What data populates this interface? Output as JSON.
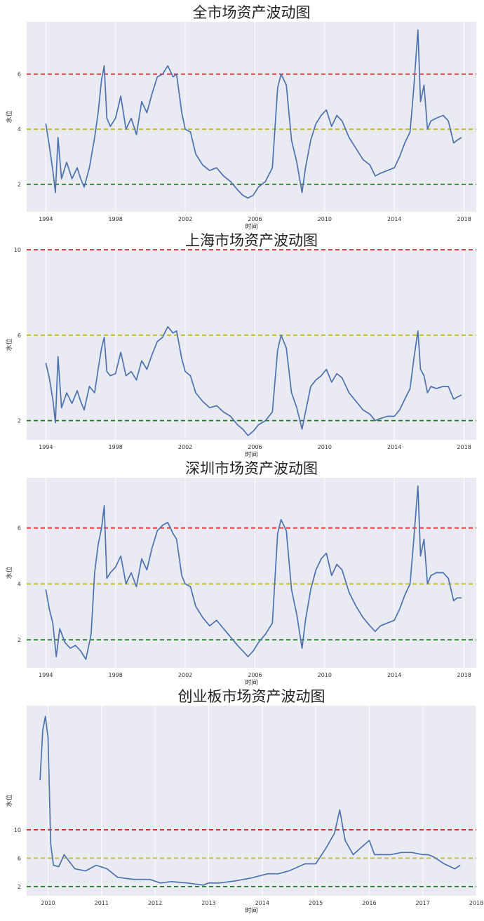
{
  "chart_data": [
    {
      "type": "line",
      "title": "全市场资产波动图",
      "xlabel": "时间",
      "ylabel": "水位",
      "xlim": [
        1992.9,
        2018.7
      ],
      "ylim": [
        1.0,
        7.9
      ],
      "x_ticks": [
        "1994",
        "1998",
        "2002",
        "2006",
        "2010",
        "2014",
        "2018"
      ],
      "y_ticks": [
        "2",
        "4",
        "6"
      ],
      "grid": true,
      "thresholds": [
        {
          "value": 6,
          "color": "#d62728"
        },
        {
          "value": 4,
          "color": "#bcbd22"
        },
        {
          "value": 2,
          "color": "#1a7f1a"
        }
      ],
      "series": [
        {
          "color": "#4c72b0",
          "x": [
            1994.0,
            1994.2,
            1994.4,
            1994.55,
            1994.7,
            1994.9,
            1995.2,
            1995.5,
            1995.8,
            1996.0,
            1996.2,
            1996.5,
            1996.8,
            1997.0,
            1997.2,
            1997.35,
            1997.5,
            1997.7,
            1998.0,
            1998.3,
            1998.6,
            1998.9,
            1999.2,
            1999.5,
            1999.8,
            2000.1,
            2000.4,
            2000.7,
            2001.0,
            2001.3,
            2001.5,
            2001.8,
            2002.0,
            2002.3,
            2002.6,
            2003.0,
            2003.4,
            2003.8,
            2004.2,
            2004.6,
            2005.0,
            2005.3,
            2005.6,
            2005.9,
            2006.2,
            2006.6,
            2007.0,
            2007.3,
            2007.5,
            2007.8,
            2008.1,
            2008.4,
            2008.7,
            2008.9,
            2009.2,
            2009.5,
            2009.8,
            2010.1,
            2010.4,
            2010.7,
            2011.0,
            2011.4,
            2011.8,
            2012.2,
            2012.6,
            2012.9,
            2013.2,
            2013.6,
            2014.0,
            2014.3,
            2014.6,
            2014.9,
            2015.1,
            2015.35,
            2015.5,
            2015.7,
            2015.9,
            2016.1,
            2016.4,
            2016.8,
            2017.1,
            2017.4,
            2017.6,
            2017.85
          ],
          "y": [
            4.2,
            3.4,
            2.5,
            1.7,
            3.7,
            2.2,
            2.8,
            2.2,
            2.6,
            2.2,
            1.9,
            2.6,
            3.7,
            4.6,
            5.8,
            6.3,
            4.4,
            4.1,
            4.4,
            5.2,
            4.0,
            4.4,
            3.8,
            5.0,
            4.6,
            5.3,
            5.9,
            6.0,
            6.3,
            5.9,
            6.0,
            4.6,
            4.0,
            3.9,
            3.1,
            2.7,
            2.5,
            2.6,
            2.3,
            2.1,
            1.8,
            1.6,
            1.5,
            1.6,
            1.9,
            2.1,
            2.6,
            5.5,
            6.0,
            5.6,
            3.6,
            2.8,
            1.7,
            2.6,
            3.6,
            4.2,
            4.5,
            4.7,
            4.1,
            4.5,
            4.3,
            3.7,
            3.3,
            2.9,
            2.7,
            2.3,
            2.4,
            2.5,
            2.6,
            3.0,
            3.5,
            3.9,
            5.4,
            7.6,
            5.0,
            5.6,
            4.0,
            4.3,
            4.4,
            4.5,
            4.3,
            3.5,
            3.6,
            3.7
          ]
        }
      ]
    },
    {
      "type": "line",
      "title": "上海市场资产波动图",
      "xlabel": "时间",
      "ylabel": "水位",
      "xlim": [
        1992.9,
        2018.7
      ],
      "ylim": [
        1.1,
        10.0
      ],
      "x_ticks": [
        "1994",
        "1998",
        "2002",
        "2006",
        "2010",
        "2014",
        "2018"
      ],
      "y_ticks": [
        "2",
        "6",
        "10"
      ],
      "grid": true,
      "thresholds": [
        {
          "value": 10,
          "color": "#d62728"
        },
        {
          "value": 6,
          "color": "#bcbd22"
        },
        {
          "value": 2,
          "color": "#1a7f1a"
        }
      ],
      "series": [
        {
          "color": "#4c72b0",
          "x": [
            1994.0,
            1994.2,
            1994.4,
            1994.55,
            1994.7,
            1994.9,
            1995.2,
            1995.5,
            1995.8,
            1996.0,
            1996.2,
            1996.5,
            1996.8,
            1997.0,
            1997.2,
            1997.35,
            1997.5,
            1997.7,
            1998.0,
            1998.3,
            1998.6,
            1998.9,
            1999.2,
            1999.5,
            1999.8,
            2000.1,
            2000.4,
            2000.7,
            2001.0,
            2001.3,
            2001.5,
            2001.8,
            2002.0,
            2002.3,
            2002.6,
            2003.0,
            2003.4,
            2003.8,
            2004.2,
            2004.6,
            2005.0,
            2005.3,
            2005.6,
            2005.9,
            2006.2,
            2006.6,
            2007.0,
            2007.3,
            2007.5,
            2007.8,
            2008.1,
            2008.4,
            2008.7,
            2008.9,
            2009.2,
            2009.5,
            2009.8,
            2010.1,
            2010.4,
            2010.7,
            2011.0,
            2011.4,
            2011.8,
            2012.2,
            2012.6,
            2012.9,
            2013.2,
            2013.6,
            2014.0,
            2014.3,
            2014.6,
            2014.9,
            2015.1,
            2015.35,
            2015.5,
            2015.7,
            2015.9,
            2016.1,
            2016.4,
            2016.8,
            2017.1,
            2017.4,
            2017.6,
            2017.85
          ],
          "y": [
            4.7,
            4.0,
            3.0,
            1.9,
            5.0,
            2.6,
            3.3,
            2.8,
            3.4,
            2.9,
            2.5,
            3.6,
            3.3,
            4.4,
            5.4,
            5.9,
            4.3,
            4.1,
            4.2,
            5.2,
            4.1,
            4.3,
            3.9,
            4.8,
            4.4,
            5.1,
            5.7,
            5.9,
            6.4,
            6.1,
            6.2,
            4.9,
            4.3,
            4.1,
            3.3,
            2.9,
            2.6,
            2.7,
            2.4,
            2.2,
            1.8,
            1.6,
            1.3,
            1.5,
            1.8,
            2.0,
            2.4,
            5.3,
            6.0,
            5.4,
            3.3,
            2.6,
            1.6,
            2.4,
            3.6,
            3.9,
            4.1,
            4.4,
            3.8,
            4.2,
            4.0,
            3.3,
            2.9,
            2.5,
            2.3,
            2.0,
            2.1,
            2.2,
            2.2,
            2.5,
            3.0,
            3.5,
            4.8,
            6.2,
            4.4,
            4.1,
            3.3,
            3.6,
            3.5,
            3.6,
            3.6,
            3.0,
            3.1,
            3.2
          ]
        }
      ]
    },
    {
      "type": "line",
      "title": "深圳市场资产波动图",
      "xlabel": "时间",
      "ylabel": "水位",
      "xlim": [
        1992.9,
        2018.7
      ],
      "ylim": [
        1.0,
        7.8
      ],
      "x_ticks": [
        "1994",
        "1998",
        "2002",
        "2006",
        "2010",
        "2014",
        "2018"
      ],
      "y_ticks": [
        "2",
        "4",
        "6"
      ],
      "grid": true,
      "thresholds": [
        {
          "value": 6,
          "color": "#d62728"
        },
        {
          "value": 4,
          "color": "#bcbd22"
        },
        {
          "value": 2,
          "color": "#1a7f1a"
        }
      ],
      "series": [
        {
          "color": "#4c72b0",
          "x": [
            1994.0,
            1994.2,
            1994.4,
            1994.6,
            1994.8,
            1995.1,
            1995.4,
            1995.7,
            1996.0,
            1996.3,
            1996.6,
            1996.8,
            1997.0,
            1997.2,
            1997.35,
            1997.5,
            1997.7,
            1998.0,
            1998.3,
            1998.6,
            1998.9,
            1999.2,
            1999.5,
            1999.8,
            2000.1,
            2000.4,
            2000.7,
            2001.0,
            2001.3,
            2001.5,
            2001.8,
            2002.0,
            2002.3,
            2002.6,
            2003.0,
            2003.4,
            2003.8,
            2004.2,
            2004.6,
            2005.0,
            2005.3,
            2005.6,
            2005.9,
            2006.2,
            2006.6,
            2007.0,
            2007.3,
            2007.5,
            2007.8,
            2008.1,
            2008.4,
            2008.7,
            2008.9,
            2009.2,
            2009.5,
            2009.8,
            2010.1,
            2010.4,
            2010.7,
            2011.0,
            2011.4,
            2011.8,
            2012.2,
            2012.6,
            2012.9,
            2013.2,
            2013.6,
            2014.0,
            2014.3,
            2014.6,
            2014.9,
            2015.1,
            2015.35,
            2015.5,
            2015.7,
            2015.9,
            2016.1,
            2016.4,
            2016.8,
            2017.1,
            2017.4,
            2017.6,
            2017.85
          ],
          "y": [
            3.8,
            3.1,
            2.6,
            1.4,
            2.4,
            1.9,
            1.7,
            1.8,
            1.6,
            1.3,
            2.2,
            4.4,
            5.4,
            6.0,
            6.8,
            4.2,
            4.4,
            4.6,
            5.0,
            4.0,
            4.4,
            3.9,
            4.9,
            4.5,
            5.3,
            5.9,
            6.1,
            6.2,
            5.8,
            5.6,
            4.3,
            4.0,
            3.9,
            3.2,
            2.8,
            2.5,
            2.7,
            2.4,
            2.1,
            1.8,
            1.6,
            1.4,
            1.6,
            1.9,
            2.2,
            2.6,
            5.8,
            6.3,
            5.9,
            3.8,
            2.9,
            1.7,
            2.7,
            3.8,
            4.5,
            4.9,
            5.1,
            4.3,
            4.7,
            4.5,
            3.7,
            3.2,
            2.8,
            2.5,
            2.3,
            2.5,
            2.6,
            2.7,
            3.1,
            3.6,
            4.0,
            5.5,
            7.5,
            5.0,
            5.6,
            4.0,
            4.3,
            4.4,
            4.4,
            4.2,
            3.4,
            3.5,
            3.5
          ]
        }
      ]
    },
    {
      "type": "line",
      "title": "创业板市场资产波动图",
      "xlabel": "时间",
      "ylabel": "水位",
      "xlim": [
        2009.6,
        2018.0
      ],
      "ylim": [
        0.7,
        27.5
      ],
      "x_ticks": [
        "2010",
        "2011",
        "2012",
        "2013",
        "2014",
        "2015",
        "2016",
        "2017",
        "2018"
      ],
      "y_ticks": [
        "2",
        "6",
        "10"
      ],
      "grid": true,
      "thresholds": [
        {
          "value": 10,
          "color": "#d62728"
        },
        {
          "value": 6,
          "color": "#bcbd22"
        },
        {
          "value": 2,
          "color": "#1a7f1a"
        }
      ],
      "series": [
        {
          "color": "#4c72b0",
          "x": [
            2009.85,
            2009.9,
            2009.95,
            2010.0,
            2010.05,
            2010.1,
            2010.2,
            2010.3,
            2010.4,
            2010.5,
            2010.7,
            2010.9,
            2011.1,
            2011.3,
            2011.6,
            2011.9,
            2012.1,
            2012.3,
            2012.6,
            2012.9,
            2013.0,
            2013.2,
            2013.5,
            2013.8,
            2014.1,
            2014.3,
            2014.5,
            2014.8,
            2015.0,
            2015.2,
            2015.35,
            2015.45,
            2015.55,
            2015.7,
            2015.85,
            2016.0,
            2016.1,
            2016.25,
            2016.4,
            2016.6,
            2016.8,
            2017.0,
            2017.1,
            2017.2,
            2017.4,
            2017.6,
            2017.7
          ],
          "y": [
            17,
            24,
            26,
            23,
            8,
            5,
            4.8,
            6.5,
            5.5,
            4.5,
            4.2,
            5,
            4.5,
            3.3,
            3.0,
            3.0,
            2.5,
            2.7,
            2.5,
            2.2,
            2.5,
            2.5,
            2.8,
            3.2,
            3.8,
            3.8,
            4.2,
            5.2,
            5.2,
            7.5,
            9.5,
            12.8,
            8.5,
            6.5,
            7.5,
            8.5,
            6.5,
            6.5,
            6.5,
            6.8,
            6.8,
            6.5,
            6.5,
            6.2,
            5.2,
            4.5,
            5.0
          ]
        }
      ]
    }
  ]
}
